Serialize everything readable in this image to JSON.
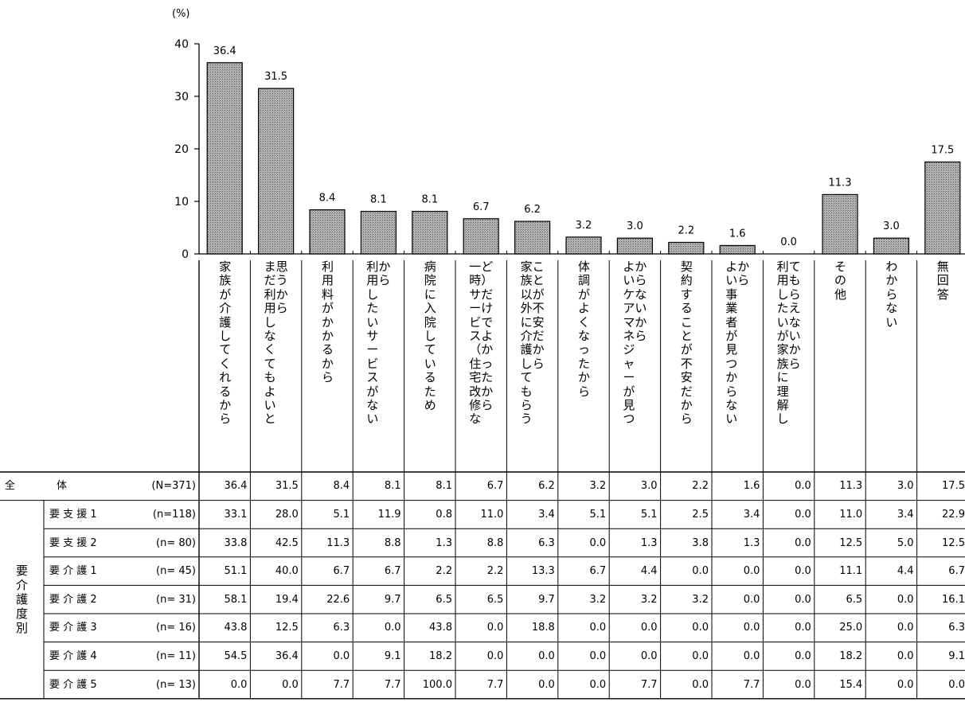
{
  "chart_data": {
    "type": "bar",
    "unit_label": "(%)",
    "ylim": [
      0,
      40
    ],
    "yticks": [
      0,
      10,
      20,
      30,
      40
    ],
    "categories": [
      "家族が介護してくれるから",
      "まだ利用しなくてもよいと思うから",
      "利用料がかかるから",
      "利用したいサービスがないから",
      "病院に入院しているため",
      "一時サービス（住宅改修など）だけでよかったから",
      "家族以外に介護してもらうことが不安だから",
      "体調がよくなったから",
      "よいケアマネジャーが見つからないから",
      "契約することが不安だから",
      "よい事業者が見つからないから",
      "利用したいが家族に理解してもらえないから",
      "その他",
      "わからない",
      "無回答"
    ],
    "values": [
      36.4,
      31.5,
      8.4,
      8.1,
      8.1,
      6.7,
      6.2,
      3.2,
      3.0,
      2.2,
      1.6,
      0.0,
      11.3,
      3.0,
      17.5
    ],
    "value_labels": [
      "36.4",
      "31.5",
      "8.4",
      "8.1",
      "8.1",
      "6.7",
      "6.2",
      "3.2",
      "3.0",
      "2.2",
      "1.6",
      "0.0",
      "11.3",
      "3.0",
      "17.5"
    ],
    "bar_label_text": [
      "家\n族\nが\n介\n護\nし\nて\nく\nれ\nる\nか\nら",
      "ま思\nだう\n利か\n用ら\nし\nな\nく\nて\nも\nよ\nい\nと",
      "利\n用\n料\nが\nか\nか\nる\nか\nら",
      "利か\n用ら\nし\nた\nい\nサ\nー\nビ\nス\nが\nな\nい",
      "病\n院\nに\n入\n院\nし\nて\nい\nる\nた\nめ",
      "一ど\n時）\nサだ\nーけ\nビで\nスよ\n（か\n住っ\n宅た\n改か\n修ら\nな",
      "家こ\n族と\n以が\n外不\nに安\n介だ\n護か\nしら\nて\nも\nら\nう",
      "体\n調\nが\nよ\nく\nな\nっ\nた\nか\nら",
      "よか\nいら\nケな\nアい\nマか\nネら\nジ\nャ\nー\nが\n見\nつ",
      "契\n約\nす\nる\nこ\nと\nが\n不\n安\nだ\nか\nら",
      "よか\nいら\n事\n業\n者\nが\n見\nつ\nか\nら\nな\nい",
      "利て\n用も\nしら\nたえ\nいな\nがい\n家か\n族ら\nに\n理\n解\nし",
      "そ\nの\n他",
      "わ\nか\nら\nな\nい",
      "無\n回\n答"
    ]
  },
  "table": {
    "group_label": "要\n介\n護\n度\n別",
    "rows": [
      {
        "label": "全　　　　体",
        "n": "(N=371)",
        "values": [
          "36.4",
          "31.5",
          "8.4",
          "8.1",
          "8.1",
          "6.7",
          "6.2",
          "3.2",
          "3.0",
          "2.2",
          "1.6",
          "0.0",
          "11.3",
          "3.0",
          "17.5"
        ]
      },
      {
        "label": "要 支 援 1",
        "n": "(n=118)",
        "values": [
          "33.1",
          "28.0",
          "5.1",
          "11.9",
          "0.8",
          "11.0",
          "3.4",
          "5.1",
          "5.1",
          "2.5",
          "3.4",
          "0.0",
          "11.0",
          "3.4",
          "22.9"
        ]
      },
      {
        "label": "要 支 援 2",
        "n": "(n= 80)",
        "values": [
          "33.8",
          "42.5",
          "11.3",
          "8.8",
          "1.3",
          "8.8",
          "6.3",
          "0.0",
          "1.3",
          "3.8",
          "1.3",
          "0.0",
          "12.5",
          "5.0",
          "12.5"
        ]
      },
      {
        "label": "要 介 護 1",
        "n": "(n= 45)",
        "values": [
          "51.1",
          "40.0",
          "6.7",
          "6.7",
          "2.2",
          "2.2",
          "13.3",
          "6.7",
          "4.4",
          "0.0",
          "0.0",
          "0.0",
          "11.1",
          "4.4",
          "6.7"
        ]
      },
      {
        "label": "要 介 護 2",
        "n": "(n= 31)",
        "values": [
          "58.1",
          "19.4",
          "22.6",
          "9.7",
          "6.5",
          "6.5",
          "9.7",
          "3.2",
          "3.2",
          "3.2",
          "0.0",
          "0.0",
          "6.5",
          "0.0",
          "16.1"
        ]
      },
      {
        "label": "要 介 護 3",
        "n": "(n= 16)",
        "values": [
          "43.8",
          "12.5",
          "6.3",
          "0.0",
          "43.8",
          "0.0",
          "18.8",
          "0.0",
          "0.0",
          "0.0",
          "0.0",
          "0.0",
          "25.0",
          "0.0",
          "6.3"
        ]
      },
      {
        "label": "要 介 護 4",
        "n": "(n= 11)",
        "values": [
          "54.5",
          "36.4",
          "0.0",
          "9.1",
          "18.2",
          "0.0",
          "0.0",
          "0.0",
          "0.0",
          "0.0",
          "0.0",
          "0.0",
          "18.2",
          "0.0",
          "9.1"
        ]
      },
      {
        "label": "要 介 護 5",
        "n": "(n= 13)",
        "values": [
          "0.0",
          "0.0",
          "7.7",
          "7.7",
          "100.0",
          "7.7",
          "0.0",
          "0.0",
          "7.7",
          "0.0",
          "7.7",
          "0.0",
          "15.4",
          "0.0",
          "0.0"
        ]
      }
    ]
  }
}
